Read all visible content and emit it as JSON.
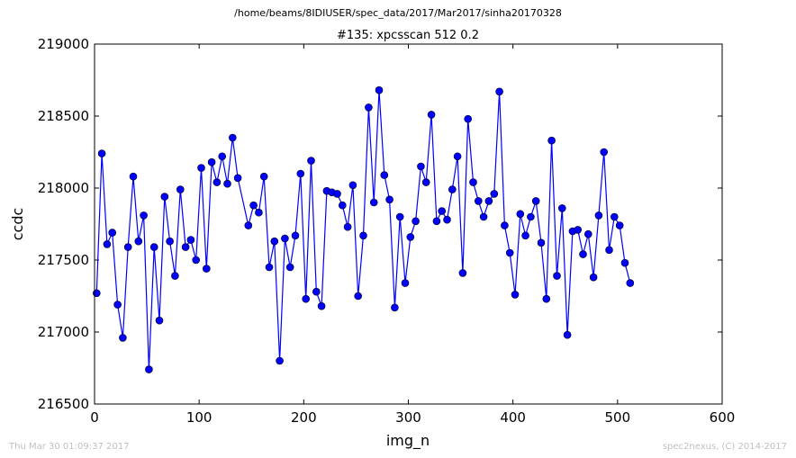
{
  "supertitle": "/home/beams/8IDIUSER/spec_data/2017/Mar2017/sinha20170328",
  "footer": {
    "timestamp": "Thu Mar 30 01:09:37 2017",
    "credit": "spec2nexus, (C) 2014-2017"
  },
  "chart_data": {
    "type": "line",
    "title": "#135: xpcsscan 512 0.2",
    "xlabel": "img_n",
    "ylabel": "ccdc",
    "xlim": [
      0,
      600
    ],
    "ylim": [
      216500,
      219000
    ],
    "xticks": [
      0,
      100,
      200,
      300,
      400,
      500,
      600
    ],
    "yticks": [
      216500,
      217000,
      217500,
      218000,
      218500,
      219000
    ],
    "grid": false,
    "color": "#0000ff",
    "marker": "circle",
    "series": [
      {
        "x": [
          2,
          7,
          12,
          17,
          22,
          27,
          32,
          37,
          42,
          47,
          52,
          57,
          62,
          67,
          72,
          77,
          82,
          87,
          92,
          97,
          102,
          107,
          112,
          117,
          122,
          127,
          132,
          137,
          147,
          152,
          157,
          162,
          167,
          172,
          177,
          182,
          187,
          192,
          197,
          202,
          207,
          212,
          217,
          222,
          227,
          232,
          237,
          242,
          247,
          252,
          257,
          262,
          267,
          272,
          277,
          282,
          287,
          292,
          297,
          302,
          307,
          312,
          317,
          322,
          327,
          332,
          337,
          342,
          347,
          352,
          357,
          362,
          367,
          372,
          377,
          382,
          387,
          392,
          397,
          402,
          407,
          412,
          417,
          422,
          427,
          432,
          437,
          442,
          447,
          452,
          457,
          462,
          467,
          472,
          477,
          482,
          487,
          492,
          497,
          502,
          507,
          512
        ],
        "y": [
          217270,
          218240,
          217610,
          217690,
          217190,
          216960,
          217590,
          218080,
          217630,
          217810,
          216740,
          217590,
          217080,
          217940,
          217630,
          217390,
          217990,
          217590,
          217640,
          217500,
          218140,
          217440,
          218180,
          218040,
          218220,
          218030,
          218350,
          218070,
          217740,
          217880,
          217830,
          218080,
          217450,
          217630,
          216800,
          217650,
          217450,
          217670,
          218100,
          217230,
          218190,
          217280,
          217180,
          217980,
          217970,
          217960,
          217880,
          217730,
          218020,
          217250,
          217670,
          218560,
          217900,
          218680,
          218090,
          217920,
          217170,
          217800,
          217340,
          217660,
          217770,
          218150,
          218040,
          218510,
          217770,
          217840,
          217780,
          217990,
          218220,
          217410,
          218480,
          218040,
          217910,
          217800,
          217910,
          217960,
          218670,
          217740,
          217550,
          217260,
          217820,
          217670,
          217800,
          217910,
          217620,
          217230,
          218330,
          217390,
          217860,
          216980,
          217700,
          217710,
          217540,
          217680,
          217380,
          217810,
          218250,
          217570,
          217800,
          217740,
          217480,
          217340
        ]
      }
    ]
  }
}
